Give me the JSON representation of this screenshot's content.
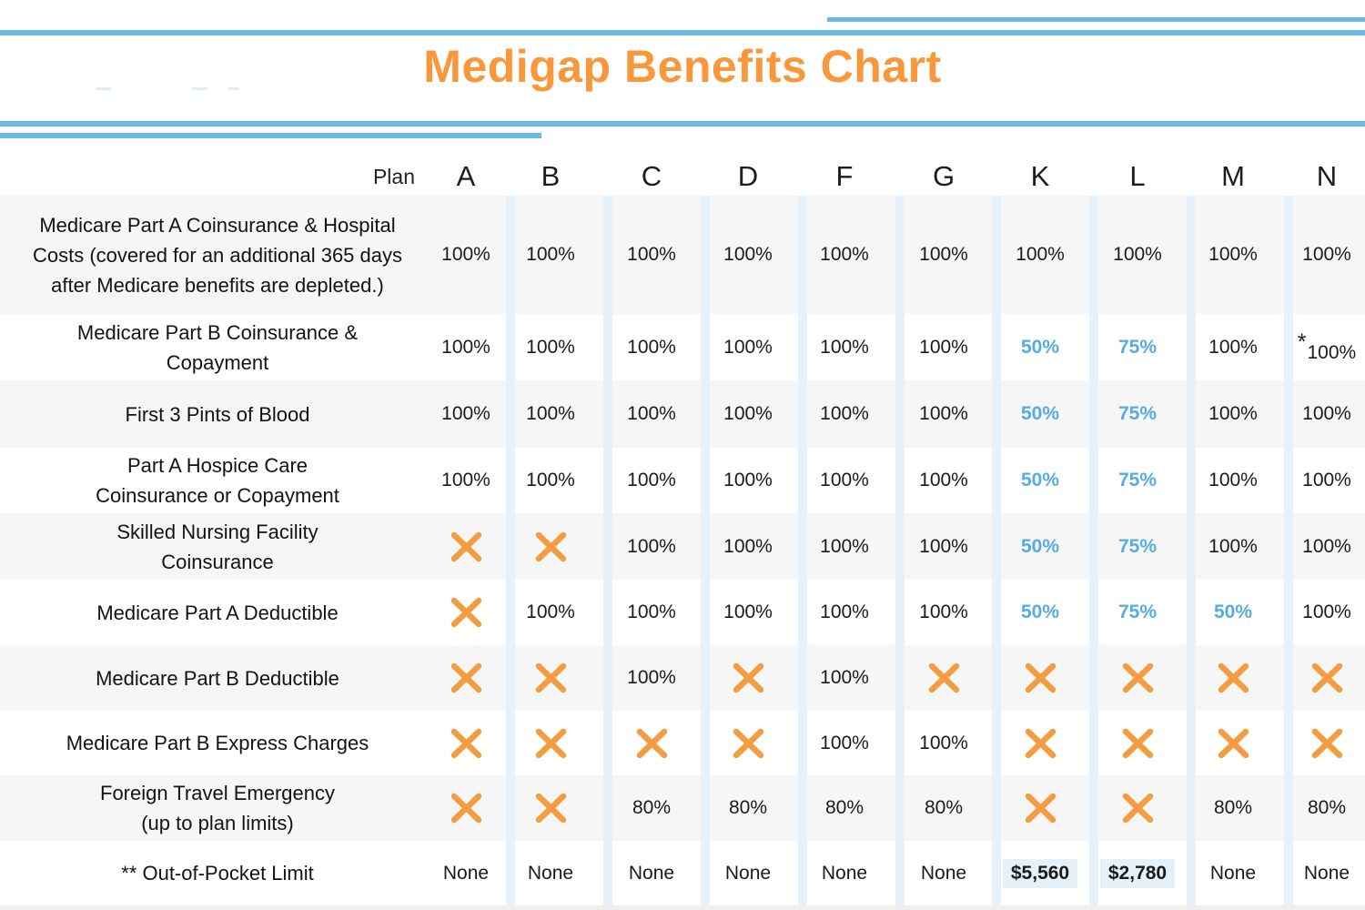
{
  "title": "Medigap Benefits Chart",
  "colors": {
    "accent_orange": "#f8973b",
    "x_mark_orange": "#f49c40",
    "highlight_blue_text": "#56ace2",
    "decor_line_blue": "#6cb9e5",
    "column_stripe_blue": "#e7f1fa",
    "row_alt_gray": "#f6f6f6",
    "money_highlight_bg": "#e4f1fb"
  },
  "chart_data": {
    "type": "table",
    "title": "Medigap Benefits Chart",
    "corner_label": "Plan",
    "star_symbol": "*",
    "columns": [
      "A",
      "B",
      "C",
      "D",
      "F",
      "G",
      "K",
      "L",
      "M",
      "N"
    ],
    "rows": [
      {
        "label": "Medicare Part A Coinsurance & Hospital\nCosts (covered for an additional 365 days\nafter Medicare benefits are depleted.)",
        "cells": [
          {
            "t": "100%"
          },
          {
            "t": "100%"
          },
          {
            "t": "100%"
          },
          {
            "t": "100%"
          },
          {
            "t": "100%"
          },
          {
            "t": "100%"
          },
          {
            "t": "100%"
          },
          {
            "t": "100%"
          },
          {
            "t": "100%"
          },
          {
            "t": "100%"
          }
        ]
      },
      {
        "label": "Medicare Part B Coinsurance &\nCopayment",
        "cells": [
          {
            "t": "100%"
          },
          {
            "t": "100%"
          },
          {
            "t": "100%"
          },
          {
            "t": "100%"
          },
          {
            "t": "100%"
          },
          {
            "t": "100%"
          },
          {
            "t": "50%",
            "c": "blue"
          },
          {
            "t": "75%",
            "c": "blue"
          },
          {
            "t": "100%"
          },
          {
            "t": "100%",
            "star": true
          }
        ]
      },
      {
        "label": "First 3 Pints of Blood",
        "cells": [
          {
            "t": "100%"
          },
          {
            "t": "100%"
          },
          {
            "t": "100%"
          },
          {
            "t": "100%"
          },
          {
            "t": "100%"
          },
          {
            "t": "100%"
          },
          {
            "t": "50%",
            "c": "blue"
          },
          {
            "t": "75%",
            "c": "blue"
          },
          {
            "t": "100%"
          },
          {
            "t": "100%"
          }
        ]
      },
      {
        "label": "Part A Hospice Care\nCoinsurance or Copayment",
        "cells": [
          {
            "t": "100%"
          },
          {
            "t": "100%"
          },
          {
            "t": "100%"
          },
          {
            "t": "100%"
          },
          {
            "t": "100%"
          },
          {
            "t": "100%"
          },
          {
            "t": "50%",
            "c": "blue"
          },
          {
            "t": "75%",
            "c": "blue"
          },
          {
            "t": "100%"
          },
          {
            "t": "100%"
          }
        ]
      },
      {
        "label": "Skilled Nursing Facility\nCoinsurance",
        "cells": [
          {
            "x": true
          },
          {
            "x": true
          },
          {
            "t": "100%"
          },
          {
            "t": "100%"
          },
          {
            "t": "100%"
          },
          {
            "t": "100%"
          },
          {
            "t": "50%",
            "c": "blue"
          },
          {
            "t": "75%",
            "c": "blue"
          },
          {
            "t": "100%"
          },
          {
            "t": "100%"
          }
        ]
      },
      {
        "label": "Medicare Part A Deductible",
        "cells": [
          {
            "x": true
          },
          {
            "t": "100%"
          },
          {
            "t": "100%"
          },
          {
            "t": "100%"
          },
          {
            "t": "100%"
          },
          {
            "t": "100%"
          },
          {
            "t": "50%",
            "c": "blue"
          },
          {
            "t": "75%",
            "c": "blue"
          },
          {
            "t": "50%",
            "c": "blue"
          },
          {
            "t": "100%"
          }
        ]
      },
      {
        "label": "Medicare Part B Deductible",
        "cells": [
          {
            "x": true
          },
          {
            "x": true
          },
          {
            "t": "100%"
          },
          {
            "x": true
          },
          {
            "t": "100%"
          },
          {
            "x": true
          },
          {
            "x": true
          },
          {
            "x": true
          },
          {
            "x": true
          },
          {
            "x": true
          }
        ]
      },
      {
        "label": "Medicare Part B Express Charges",
        "cells": [
          {
            "x": true
          },
          {
            "x": true
          },
          {
            "x": true
          },
          {
            "x": true
          },
          {
            "t": "100%"
          },
          {
            "t": "100%"
          },
          {
            "x": true
          },
          {
            "x": true
          },
          {
            "x": true
          },
          {
            "x": true
          }
        ]
      },
      {
        "label": "Foreign Travel Emergency\n(up to plan limits)",
        "cells": [
          {
            "x": true
          },
          {
            "x": true
          },
          {
            "t": "80%"
          },
          {
            "t": "80%"
          },
          {
            "t": "80%"
          },
          {
            "t": "80%"
          },
          {
            "x": true
          },
          {
            "x": true
          },
          {
            "t": "80%"
          },
          {
            "t": "80%"
          }
        ]
      },
      {
        "label": "** Out-of-Pocket Limit",
        "cells": [
          {
            "t": "None"
          },
          {
            "t": "None"
          },
          {
            "t": "None"
          },
          {
            "t": "None"
          },
          {
            "t": "None"
          },
          {
            "t": "None"
          },
          {
            "t": "$5,560",
            "hl": true
          },
          {
            "t": "$2,780",
            "hl": true
          },
          {
            "t": "None"
          },
          {
            "t": "None"
          }
        ]
      }
    ],
    "icons": {
      "x_cell": "x-mark-icon"
    }
  }
}
